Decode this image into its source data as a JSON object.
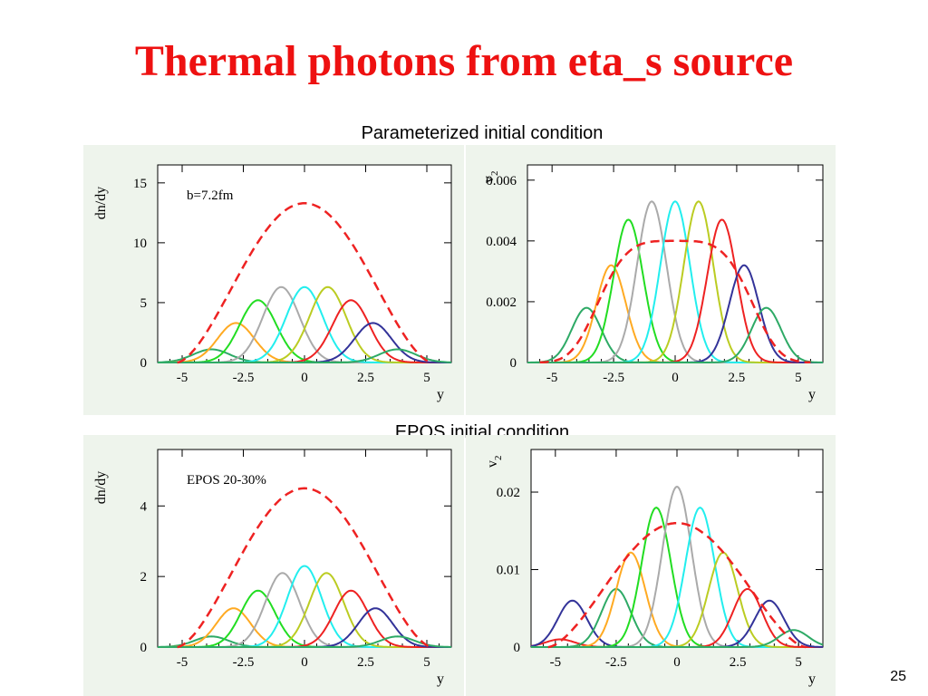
{
  "slide": {
    "title": "Thermal photons from eta_s source",
    "subtitle_top": "Parameterized initial condition",
    "subtitle_bottom": "EPOS initial condition",
    "page_number": "25"
  },
  "colors": {
    "title": "#ee1111",
    "panel_bg": "#eef4ec",
    "total": "#ee2222",
    "source_colors": [
      "#2eaa66",
      "#ffaa22",
      "#22dd22",
      "#aaaaaa",
      "#22eeee",
      "#bbcc22",
      "#ee2222",
      "#333399",
      "#2eaa66"
    ]
  },
  "chart_data": [
    {
      "type": "line",
      "ylabel": "dn/dy",
      "xlabel": "y",
      "annotation": "b=7.2fm",
      "xlim": [
        -6,
        6
      ],
      "ylim": [
        0,
        16.5
      ],
      "xticks": [
        -5,
        -2.5,
        0,
        2.5,
        5
      ],
      "xtick_labels": [
        "-5",
        "-2.5",
        "0",
        "2.5",
        "5"
      ],
      "yticks": [
        0,
        5,
        10,
        15
      ],
      "ytick_labels": [
        "0",
        "5",
        "10",
        "15"
      ],
      "grid": false,
      "total": {
        "style": "dashed",
        "shape": "cosine",
        "center": 0,
        "peak": 13.3,
        "support": [
          -5.2,
          5.2
        ]
      },
      "sources": [
        {
          "center": -3.8,
          "amplitude": 1.1,
          "width": 0.75
        },
        {
          "center": -2.8,
          "amplitude": 3.3,
          "width": 0.75
        },
        {
          "center": -1.9,
          "amplitude": 5.2,
          "width": 0.75
        },
        {
          "center": -0.95,
          "amplitude": 6.3,
          "width": 0.75
        },
        {
          "center": 0,
          "amplitude": 6.3,
          "width": 0.75
        },
        {
          "center": 0.95,
          "amplitude": 6.3,
          "width": 0.75
        },
        {
          "center": 1.9,
          "amplitude": 5.2,
          "width": 0.75
        },
        {
          "center": 2.8,
          "amplitude": 3.3,
          "width": 0.75
        },
        {
          "center": 3.8,
          "amplitude": 1.1,
          "width": 0.75
        }
      ]
    },
    {
      "type": "line",
      "ylabel": "v2",
      "xlabel": "y",
      "xlim": [
        -6,
        6
      ],
      "ylim": [
        0,
        0.0065
      ],
      "xticks": [
        -5,
        -2.5,
        0,
        2.5,
        5
      ],
      "xtick_labels": [
        "-5",
        "-2.5",
        "0",
        "2.5",
        "5"
      ],
      "yticks": [
        0,
        0.002,
        0.004,
        0.006
      ],
      "ytick_labels": [
        "0",
        "0.002",
        "0.004",
        "0.006"
      ],
      "grid": false,
      "total": {
        "style": "dashed",
        "shape": "flat-top",
        "center": 0,
        "peak": 0.004,
        "support": [
          -5.5,
          5.5
        ]
      },
      "sources": [
        {
          "center": -3.6,
          "amplitude": 0.0018,
          "width": 0.6
        },
        {
          "center": -2.6,
          "amplitude": 0.0032,
          "width": 0.6
        },
        {
          "center": -1.9,
          "amplitude": 0.0047,
          "width": 0.6
        },
        {
          "center": -0.95,
          "amplitude": 0.0053,
          "width": 0.6
        },
        {
          "center": 0,
          "amplitude": 0.0053,
          "width": 0.6
        },
        {
          "center": 0.95,
          "amplitude": 0.0053,
          "width": 0.6
        },
        {
          "center": 1.9,
          "amplitude": 0.0047,
          "width": 0.6
        },
        {
          "center": 2.8,
          "amplitude": 0.0032,
          "width": 0.6
        },
        {
          "center": 3.7,
          "amplitude": 0.0018,
          "width": 0.6
        }
      ]
    },
    {
      "type": "line",
      "ylabel": "dn/dy",
      "xlabel": "y",
      "annotation": "EPOS 20-30%",
      "xlim": [
        -6,
        6
      ],
      "ylim": [
        0,
        5.6
      ],
      "xticks": [
        -5,
        -2.5,
        0,
        2.5,
        5
      ],
      "xtick_labels": [
        "-5",
        "-2.5",
        "0",
        "2.5",
        "5"
      ],
      "yticks": [
        0,
        2,
        4
      ],
      "ytick_labels": [
        "0",
        "2",
        "4"
      ],
      "grid": false,
      "total": {
        "style": "dashed",
        "shape": "cosine",
        "center": 0,
        "peak": 4.5,
        "support": [
          -5.2,
          5.2
        ]
      },
      "sources": [
        {
          "center": -3.8,
          "amplitude": 0.3,
          "width": 0.7
        },
        {
          "center": -2.9,
          "amplitude": 1.1,
          "width": 0.7
        },
        {
          "center": -1.9,
          "amplitude": 1.6,
          "width": 0.7
        },
        {
          "center": -0.9,
          "amplitude": 2.1,
          "width": 0.7
        },
        {
          "center": 0,
          "amplitude": 2.3,
          "width": 0.7
        },
        {
          "center": 0.9,
          "amplitude": 2.1,
          "width": 0.7
        },
        {
          "center": 1.9,
          "amplitude": 1.6,
          "width": 0.7
        },
        {
          "center": 2.9,
          "amplitude": 1.1,
          "width": 0.7
        },
        {
          "center": 3.8,
          "amplitude": 0.3,
          "width": 0.7
        }
      ]
    },
    {
      "type": "line",
      "ylabel": "v2",
      "xlabel": "y",
      "xlim": [
        -6,
        6
      ],
      "ylim": [
        0,
        0.0255
      ],
      "xticks": [
        -5,
        -2.5,
        0,
        2.5,
        5
      ],
      "xtick_labels": [
        "-5",
        "-2.5",
        "0",
        "2.5",
        "5"
      ],
      "yticks": [
        0,
        0.01,
        0.02
      ],
      "ytick_labels": [
        "0",
        "0.01",
        "0.02"
      ],
      "grid": false,
      "total": {
        "style": "dashed",
        "shape": "cosine",
        "center": 0,
        "peak": 0.016,
        "support": [
          -5.3,
          5.3
        ]
      },
      "sources": [
        {
          "center": -4.8,
          "amplitude": 0.001,
          "width": 0.6
        },
        {
          "center": -4.3,
          "amplitude": 0.006,
          "width": 0.6
        },
        {
          "center": -2.5,
          "amplitude": 0.0075,
          "width": 0.6
        },
        {
          "center": -1.9,
          "amplitude": 0.0122,
          "width": 0.6
        },
        {
          "center": -0.85,
          "amplitude": 0.018,
          "width": 0.6
        },
        {
          "center": 0,
          "amplitude": 0.0207,
          "width": 0.6
        },
        {
          "center": 0.95,
          "amplitude": 0.018,
          "width": 0.6
        },
        {
          "center": 1.9,
          "amplitude": 0.0122,
          "width": 0.6
        },
        {
          "center": 2.9,
          "amplitude": 0.0075,
          "width": 0.6
        },
        {
          "center": 3.8,
          "amplitude": 0.006,
          "width": 0.6
        },
        {
          "center": 4.8,
          "amplitude": 0.0022,
          "width": 0.6
        }
      ]
    }
  ]
}
